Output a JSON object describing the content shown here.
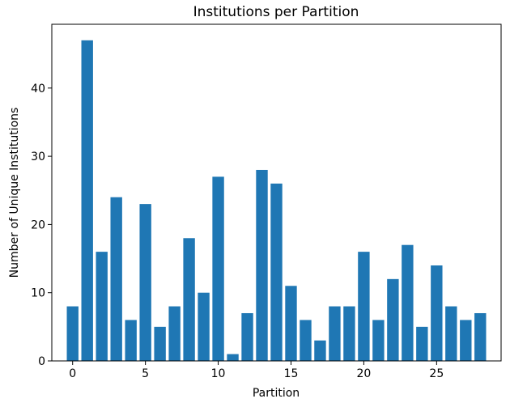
{
  "chart_data": {
    "type": "bar",
    "title": "Institutions per Partition",
    "xlabel": "Partition",
    "ylabel": "Number of Unique Institutions",
    "categories": [
      0,
      1,
      2,
      3,
      4,
      5,
      6,
      7,
      8,
      9,
      10,
      11,
      12,
      13,
      14,
      15,
      16,
      17,
      18,
      19,
      20,
      21,
      22,
      23,
      24,
      25,
      26,
      27,
      28
    ],
    "values": [
      8,
      47,
      16,
      24,
      6,
      23,
      5,
      8,
      18,
      10,
      27,
      1,
      7,
      28,
      26,
      11,
      6,
      3,
      8,
      8,
      16,
      6,
      12,
      17,
      5,
      14,
      8,
      6,
      7
    ],
    "xlim": [
      -1.43,
      29.43
    ],
    "ylim": [
      0,
      49.35
    ],
    "xticks": [
      0,
      5,
      10,
      15,
      20,
      25
    ],
    "yticks": [
      0,
      10,
      20,
      30,
      40
    ],
    "bar_color": "#1f77b4",
    "grid": false,
    "legend": "none"
  }
}
